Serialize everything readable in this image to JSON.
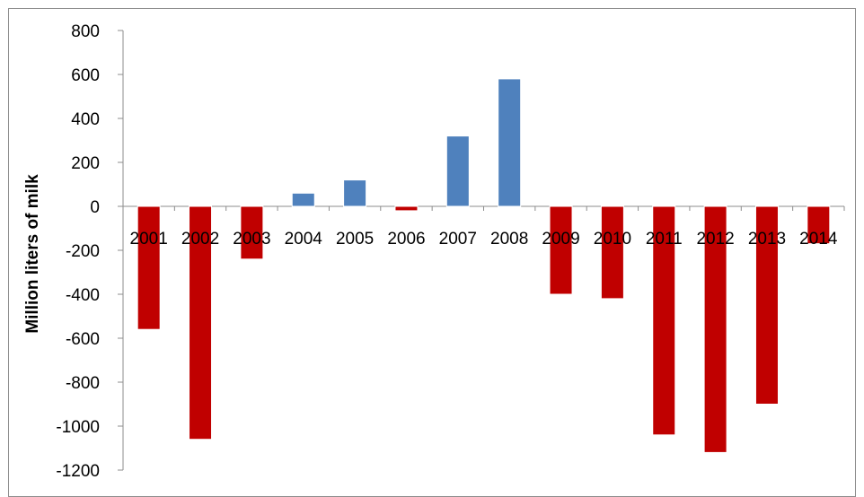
{
  "chart_data": {
    "type": "bar",
    "title": "",
    "xlabel": "",
    "ylabel": "Million liters of milk",
    "ylim": [
      -1200,
      800
    ],
    "yticks": [
      800,
      600,
      400,
      200,
      0,
      -200,
      -400,
      -600,
      -800,
      -1000,
      -1200
    ],
    "grid": false,
    "legend": "none",
    "categories": [
      "2001",
      "2002",
      "2003",
      "2004",
      "2005",
      "2006",
      "2007",
      "2008",
      "2009",
      "2010",
      "2011",
      "2012",
      "2013",
      "2014"
    ],
    "values": [
      -560,
      -1060,
      -240,
      60,
      120,
      -20,
      320,
      580,
      -400,
      -420,
      -1040,
      -1120,
      -900,
      -170
    ],
    "colors": {
      "positive": "#4f81bd",
      "negative": "#c00000"
    }
  }
}
